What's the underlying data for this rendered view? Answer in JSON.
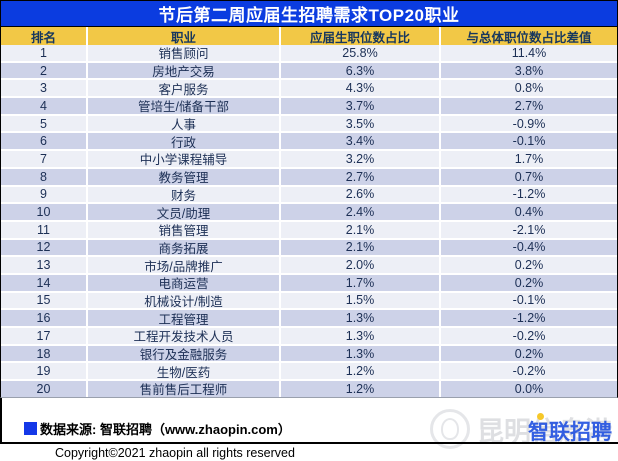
{
  "title": "节后第二周应届生招聘需求TOP20职业",
  "chart_data": {
    "type": "table",
    "title": "节后第二周应届生招聘需求TOP20职业",
    "columns": [
      "排名",
      "职业",
      "应届生职位数占比",
      "与总体职位数占比差值"
    ],
    "rows": [
      [
        "1",
        "销售顾问",
        "25.8%",
        "11.4%"
      ],
      [
        "2",
        "房地产交易",
        "6.3%",
        "3.8%"
      ],
      [
        "3",
        "客户服务",
        "4.3%",
        "0.8%"
      ],
      [
        "4",
        "管培生/储备干部",
        "3.7%",
        "2.7%"
      ],
      [
        "5",
        "人事",
        "3.5%",
        "-0.9%"
      ],
      [
        "6",
        "行政",
        "3.4%",
        "-0.1%"
      ],
      [
        "7",
        "中小学课程辅导",
        "3.2%",
        "1.7%"
      ],
      [
        "8",
        "教务管理",
        "2.7%",
        "0.7%"
      ],
      [
        "9",
        "财务",
        "2.6%",
        "-1.2%"
      ],
      [
        "10",
        "文员/助理",
        "2.4%",
        "0.4%"
      ],
      [
        "11",
        "销售管理",
        "2.1%",
        "-2.1%"
      ],
      [
        "12",
        "商务拓展",
        "2.1%",
        "-0.4%"
      ],
      [
        "13",
        "市场/品牌推广",
        "2.0%",
        "0.2%"
      ],
      [
        "14",
        "电商运营",
        "1.7%",
        "0.2%"
      ],
      [
        "15",
        "机械设计/制造",
        "1.5%",
        "-0.1%"
      ],
      [
        "16",
        "工程管理",
        "1.3%",
        "-1.2%"
      ],
      [
        "17",
        "工程开发技术人员",
        "1.3%",
        "-0.2%"
      ],
      [
        "18",
        "银行及金融服务",
        "1.3%",
        "0.2%"
      ],
      [
        "19",
        "生物/医药",
        "1.2%",
        "-0.2%"
      ],
      [
        "20",
        "售前售后工程师",
        "1.2%",
        "0.0%"
      ]
    ]
  },
  "footer": {
    "source": "数据来源: 智联招聘（www.zhaopin.com）",
    "copyright": "Copyright©2021 zhaopin all rights reserved"
  },
  "watermark": {
    "gray_text": "昆明信息港",
    "logo_text": "智联招聘"
  },
  "colors": {
    "title_bar": "#0b3ce0",
    "header_row": "#f2c846",
    "row_odd": "#edeff6",
    "row_even": "#cdd2e8",
    "cell_text": "#1c2f55",
    "header_text": "#17375e",
    "source_square": "#1438e8",
    "logo_blue": "#2050e0",
    "logo_dot_yellow": "#f5c51d"
  }
}
